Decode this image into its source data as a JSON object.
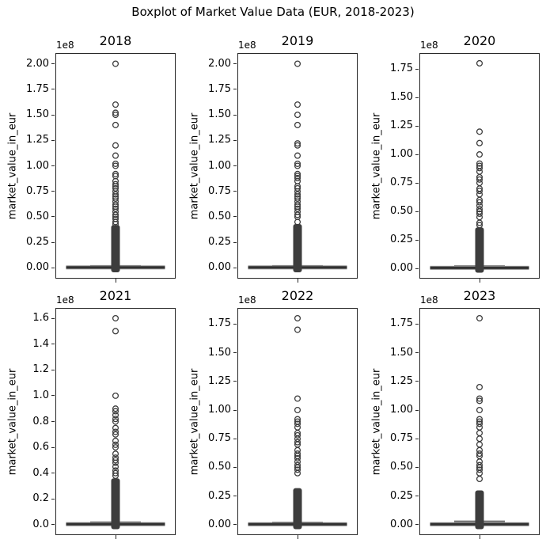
{
  "chart_data": {
    "type": "boxplot",
    "title": "Boxplot of Market Value Data (EUR, 2018-2023)",
    "ylabel": "market_value_in_eur",
    "y_offset_label": "1e8",
    "x_tick_label": "",
    "layout_hint": "2 rows x 3 columns of vertical boxplots, one box per subplot, no grid, black spines",
    "value_unit": "EUR x 1e8",
    "colors": {
      "spine": "#262626",
      "text": "#000000",
      "flier_edge": "#3d3d3d",
      "box_core": "#303030",
      "box_halo": "#8f8f8f",
      "cap": "#6e6e6e",
      "dense_band": "#3d3d3d"
    },
    "subplots": [
      {
        "title": "2018",
        "ylim": [
          -0.105,
          2.105
        ],
        "ytick_vals": [
          0.0,
          0.25,
          0.5,
          0.75,
          1.0,
          1.25,
          1.5,
          1.75,
          2.0
        ],
        "ytick_labels": [
          "0.00",
          "0.25",
          "0.50",
          "0.75",
          "1.00",
          "1.25",
          "1.50",
          "1.75",
          "2.00"
        ],
        "box": {
          "median": 0.005,
          "q1": 0.001,
          "q3": 0.012,
          "whisker_low": 0.0,
          "whisker_high_cap": 0.02
        },
        "outliers": [
          2.0,
          1.6,
          1.52,
          1.5,
          1.4,
          1.2,
          1.1,
          1.02,
          1.0,
          0.92,
          0.9,
          0.85,
          0.82,
          0.8,
          0.78,
          0.75,
          0.72,
          0.7,
          0.68,
          0.65,
          0.62,
          0.6,
          0.58,
          0.55,
          0.52,
          0.5,
          0.48,
          0.45,
          0.43
        ],
        "dense_outlier_band": [
          0.0,
          0.42
        ]
      },
      {
        "title": "2019",
        "ylim": [
          -0.105,
          2.105
        ],
        "ytick_vals": [
          0.0,
          0.25,
          0.5,
          0.75,
          1.0,
          1.25,
          1.5,
          1.75,
          2.0
        ],
        "ytick_labels": [
          "0.00",
          "0.25",
          "0.50",
          "0.75",
          "1.00",
          "1.25",
          "1.50",
          "1.75",
          "2.00"
        ],
        "box": {
          "median": 0.005,
          "q1": 0.001,
          "q3": 0.012,
          "whisker_low": 0.0,
          "whisker_high_cap": 0.02
        },
        "outliers": [
          2.0,
          1.6,
          1.5,
          1.4,
          1.22,
          1.2,
          1.1,
          1.02,
          1.0,
          0.92,
          0.9,
          0.88,
          0.85,
          0.8,
          0.78,
          0.75,
          0.72,
          0.7,
          0.68,
          0.65,
          0.62,
          0.6,
          0.58,
          0.55,
          0.52,
          0.5,
          0.45
        ],
        "dense_outlier_band": [
          0.0,
          0.43
        ]
      },
      {
        "title": "2020",
        "ylim": [
          -0.09,
          1.89
        ],
        "ytick_vals": [
          0.0,
          0.25,
          0.5,
          0.75,
          1.0,
          1.25,
          1.5,
          1.75
        ],
        "ytick_labels": [
          "0.00",
          "0.25",
          "0.50",
          "0.75",
          "1.00",
          "1.25",
          "1.50",
          "1.75"
        ],
        "box": {
          "median": 0.005,
          "q1": 0.001,
          "q3": 0.012,
          "whisker_low": 0.0,
          "whisker_high_cap": 0.02
        },
        "outliers": [
          1.8,
          1.2,
          1.1,
          1.0,
          0.92,
          0.9,
          0.88,
          0.85,
          0.8,
          0.78,
          0.75,
          0.7,
          0.68,
          0.65,
          0.6,
          0.58,
          0.55,
          0.52,
          0.5,
          0.48,
          0.45,
          0.4,
          0.38
        ],
        "dense_outlier_band": [
          0.0,
          0.36
        ]
      },
      {
        "title": "2021",
        "ylim": [
          -0.08,
          1.68
        ],
        "ytick_vals": [
          0.0,
          0.2,
          0.4,
          0.6,
          0.8,
          1.0,
          1.2,
          1.4,
          1.6
        ],
        "ytick_labels": [
          "0.0",
          "0.2",
          "0.4",
          "0.6",
          "0.8",
          "1.0",
          "1.2",
          "1.4",
          "1.6"
        ],
        "box": {
          "median": 0.005,
          "q1": 0.001,
          "q3": 0.012,
          "whisker_low": 0.0,
          "whisker_high_cap": 0.02
        },
        "outliers": [
          1.6,
          1.5,
          1.0,
          0.9,
          0.88,
          0.85,
          0.82,
          0.8,
          0.75,
          0.72,
          0.7,
          0.65,
          0.62,
          0.6,
          0.55,
          0.52,
          0.5,
          0.48,
          0.45,
          0.42,
          0.4,
          0.38
        ],
        "dense_outlier_band": [
          0.0,
          0.36
        ]
      },
      {
        "title": "2022",
        "ylim": [
          -0.09,
          1.89
        ],
        "ytick_vals": [
          0.0,
          0.25,
          0.5,
          0.75,
          1.0,
          1.25,
          1.5,
          1.75
        ],
        "ytick_labels": [
          "0.00",
          "0.25",
          "0.50",
          "0.75",
          "1.00",
          "1.25",
          "1.50",
          "1.75"
        ],
        "box": {
          "median": 0.005,
          "q1": 0.001,
          "q3": 0.012,
          "whisker_low": 0.0,
          "whisker_high_cap": 0.02
        },
        "outliers": [
          1.8,
          1.7,
          1.1,
          1.0,
          0.92,
          0.9,
          0.88,
          0.85,
          0.8,
          0.78,
          0.75,
          0.72,
          0.7,
          0.65,
          0.62,
          0.6,
          0.58,
          0.55,
          0.52,
          0.5,
          0.48,
          0.45
        ],
        "dense_outlier_band": [
          0.0,
          0.32
        ]
      },
      {
        "title": "2023",
        "ylim": [
          -0.09,
          1.89
        ],
        "ytick_vals": [
          0.0,
          0.25,
          0.5,
          0.75,
          1.0,
          1.25,
          1.5,
          1.75
        ],
        "ytick_labels": [
          "0.00",
          "0.25",
          "0.50",
          "0.75",
          "1.00",
          "1.25",
          "1.50",
          "1.75"
        ],
        "box": {
          "median": 0.005,
          "q1": 0.001,
          "q3": 0.012,
          "whisker_low": 0.0,
          "whisker_high_cap": 0.03
        },
        "outliers": [
          1.8,
          1.2,
          1.1,
          1.08,
          1.0,
          0.92,
          0.9,
          0.88,
          0.85,
          0.8,
          0.75,
          0.7,
          0.65,
          0.62,
          0.6,
          0.55,
          0.52,
          0.5,
          0.48,
          0.45,
          0.4
        ],
        "dense_outlier_band": [
          0.0,
          0.3
        ]
      }
    ]
  }
}
